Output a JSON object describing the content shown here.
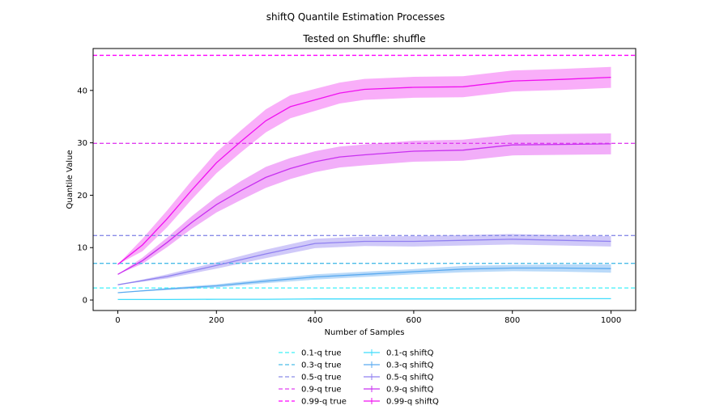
{
  "chart_data": {
    "type": "line",
    "suptitle": "shiftQ Quantile Estimation Processes",
    "title": "Tested on Shuffle: shuffle",
    "xlabel": "Number of Samples",
    "ylabel": "Quantile Value",
    "xlim": [
      -50,
      1050
    ],
    "ylim": [
      -2,
      48
    ],
    "xticks": [
      0,
      200,
      400,
      600,
      800,
      1000
    ],
    "yticks": [
      0,
      10,
      20,
      30,
      40
    ],
    "grid": false,
    "legend_position": "below",
    "true_lines": [
      {
        "name": "0.1-q true",
        "value": 2.3,
        "color": "#3ff0f8"
      },
      {
        "name": "0.3-q true",
        "value": 7.0,
        "color": "#4bbce8"
      },
      {
        "name": "0.5-q true",
        "value": 12.3,
        "color": "#8a8ce8"
      },
      {
        "name": "0.9-q true",
        "value": 29.9,
        "color": "#e040f0"
      },
      {
        "name": "0.99-q true",
        "value": 46.7,
        "color": "#ff00ff"
      }
    ],
    "series": [
      {
        "name": "0.1-q shiftQ",
        "color": "#3fdcfc",
        "band": "#9eeefe",
        "x": [
          0,
          100,
          200,
          300,
          400,
          500,
          600,
          700,
          800,
          900,
          1000
        ],
        "y": [
          0.1,
          0.1,
          0.15,
          0.15,
          0.2,
          0.2,
          0.2,
          0.2,
          0.25,
          0.25,
          0.25
        ],
        "err": [
          0,
          0.05,
          0.05,
          0.05,
          0.05,
          0.05,
          0.05,
          0.05,
          0.05,
          0.05,
          0.05
        ]
      },
      {
        "name": "0.3-q shiftQ",
        "color": "#5aaaf0",
        "band": "#aed4f8",
        "x": [
          0,
          100,
          200,
          300,
          400,
          500,
          600,
          700,
          800,
          900,
          1000
        ],
        "y": [
          1.4,
          2.1,
          2.7,
          3.6,
          4.4,
          4.9,
          5.4,
          5.9,
          6.1,
          6.1,
          6.0
        ],
        "err": [
          0,
          0.2,
          0.3,
          0.4,
          0.5,
          0.5,
          0.5,
          0.6,
          0.6,
          0.7,
          0.8
        ]
      },
      {
        "name": "0.5-q shiftQ",
        "color": "#9080f0",
        "band": "#c8c0f8",
        "x": [
          0,
          100,
          200,
          300,
          400,
          500,
          600,
          700,
          800,
          900,
          1000
        ],
        "y": [
          2.9,
          4.5,
          6.6,
          8.8,
          10.8,
          11.2,
          11.2,
          11.4,
          11.6,
          11.4,
          11.2
        ],
        "err": [
          0,
          0.4,
          0.6,
          0.8,
          0.9,
          0.9,
          1.0,
          1.0,
          1.0,
          1.0,
          1.0
        ]
      },
      {
        "name": "0.9-q shiftQ",
        "color": "#c830f0",
        "band": "#f0a0f8",
        "x": [
          0,
          50,
          100,
          150,
          200,
          250,
          300,
          350,
          400,
          450,
          500,
          600,
          700,
          800,
          900,
          1000
        ],
        "y": [
          4.9,
          7.5,
          11.0,
          14.8,
          18.2,
          20.9,
          23.4,
          25.1,
          26.4,
          27.3,
          27.7,
          28.4,
          28.6,
          29.6,
          29.7,
          29.8
        ],
        "err": [
          0,
          0.6,
          0.9,
          1.2,
          1.5,
          1.8,
          2.0,
          2.0,
          2.0,
          2.0,
          2.0,
          2.0,
          2.0,
          2.0,
          2.0,
          2.0
        ]
      },
      {
        "name": "0.99-q shiftQ",
        "color": "#f010f0",
        "band": "#f8a0f8",
        "x": [
          0,
          50,
          100,
          150,
          200,
          250,
          300,
          350,
          400,
          450,
          500,
          600,
          700,
          800,
          900,
          1000
        ],
        "y": [
          6.8,
          10.5,
          15.5,
          21.0,
          26.2,
          30.3,
          34.2,
          36.9,
          38.2,
          39.5,
          40.2,
          40.6,
          40.7,
          41.8,
          42.1,
          42.5
        ],
        "err": [
          0,
          1.2,
          1.6,
          1.8,
          2.0,
          2.1,
          2.2,
          2.2,
          2.1,
          2.0,
          2.0,
          2.0,
          2.0,
          2.0,
          2.0,
          2.0
        ]
      }
    ]
  }
}
